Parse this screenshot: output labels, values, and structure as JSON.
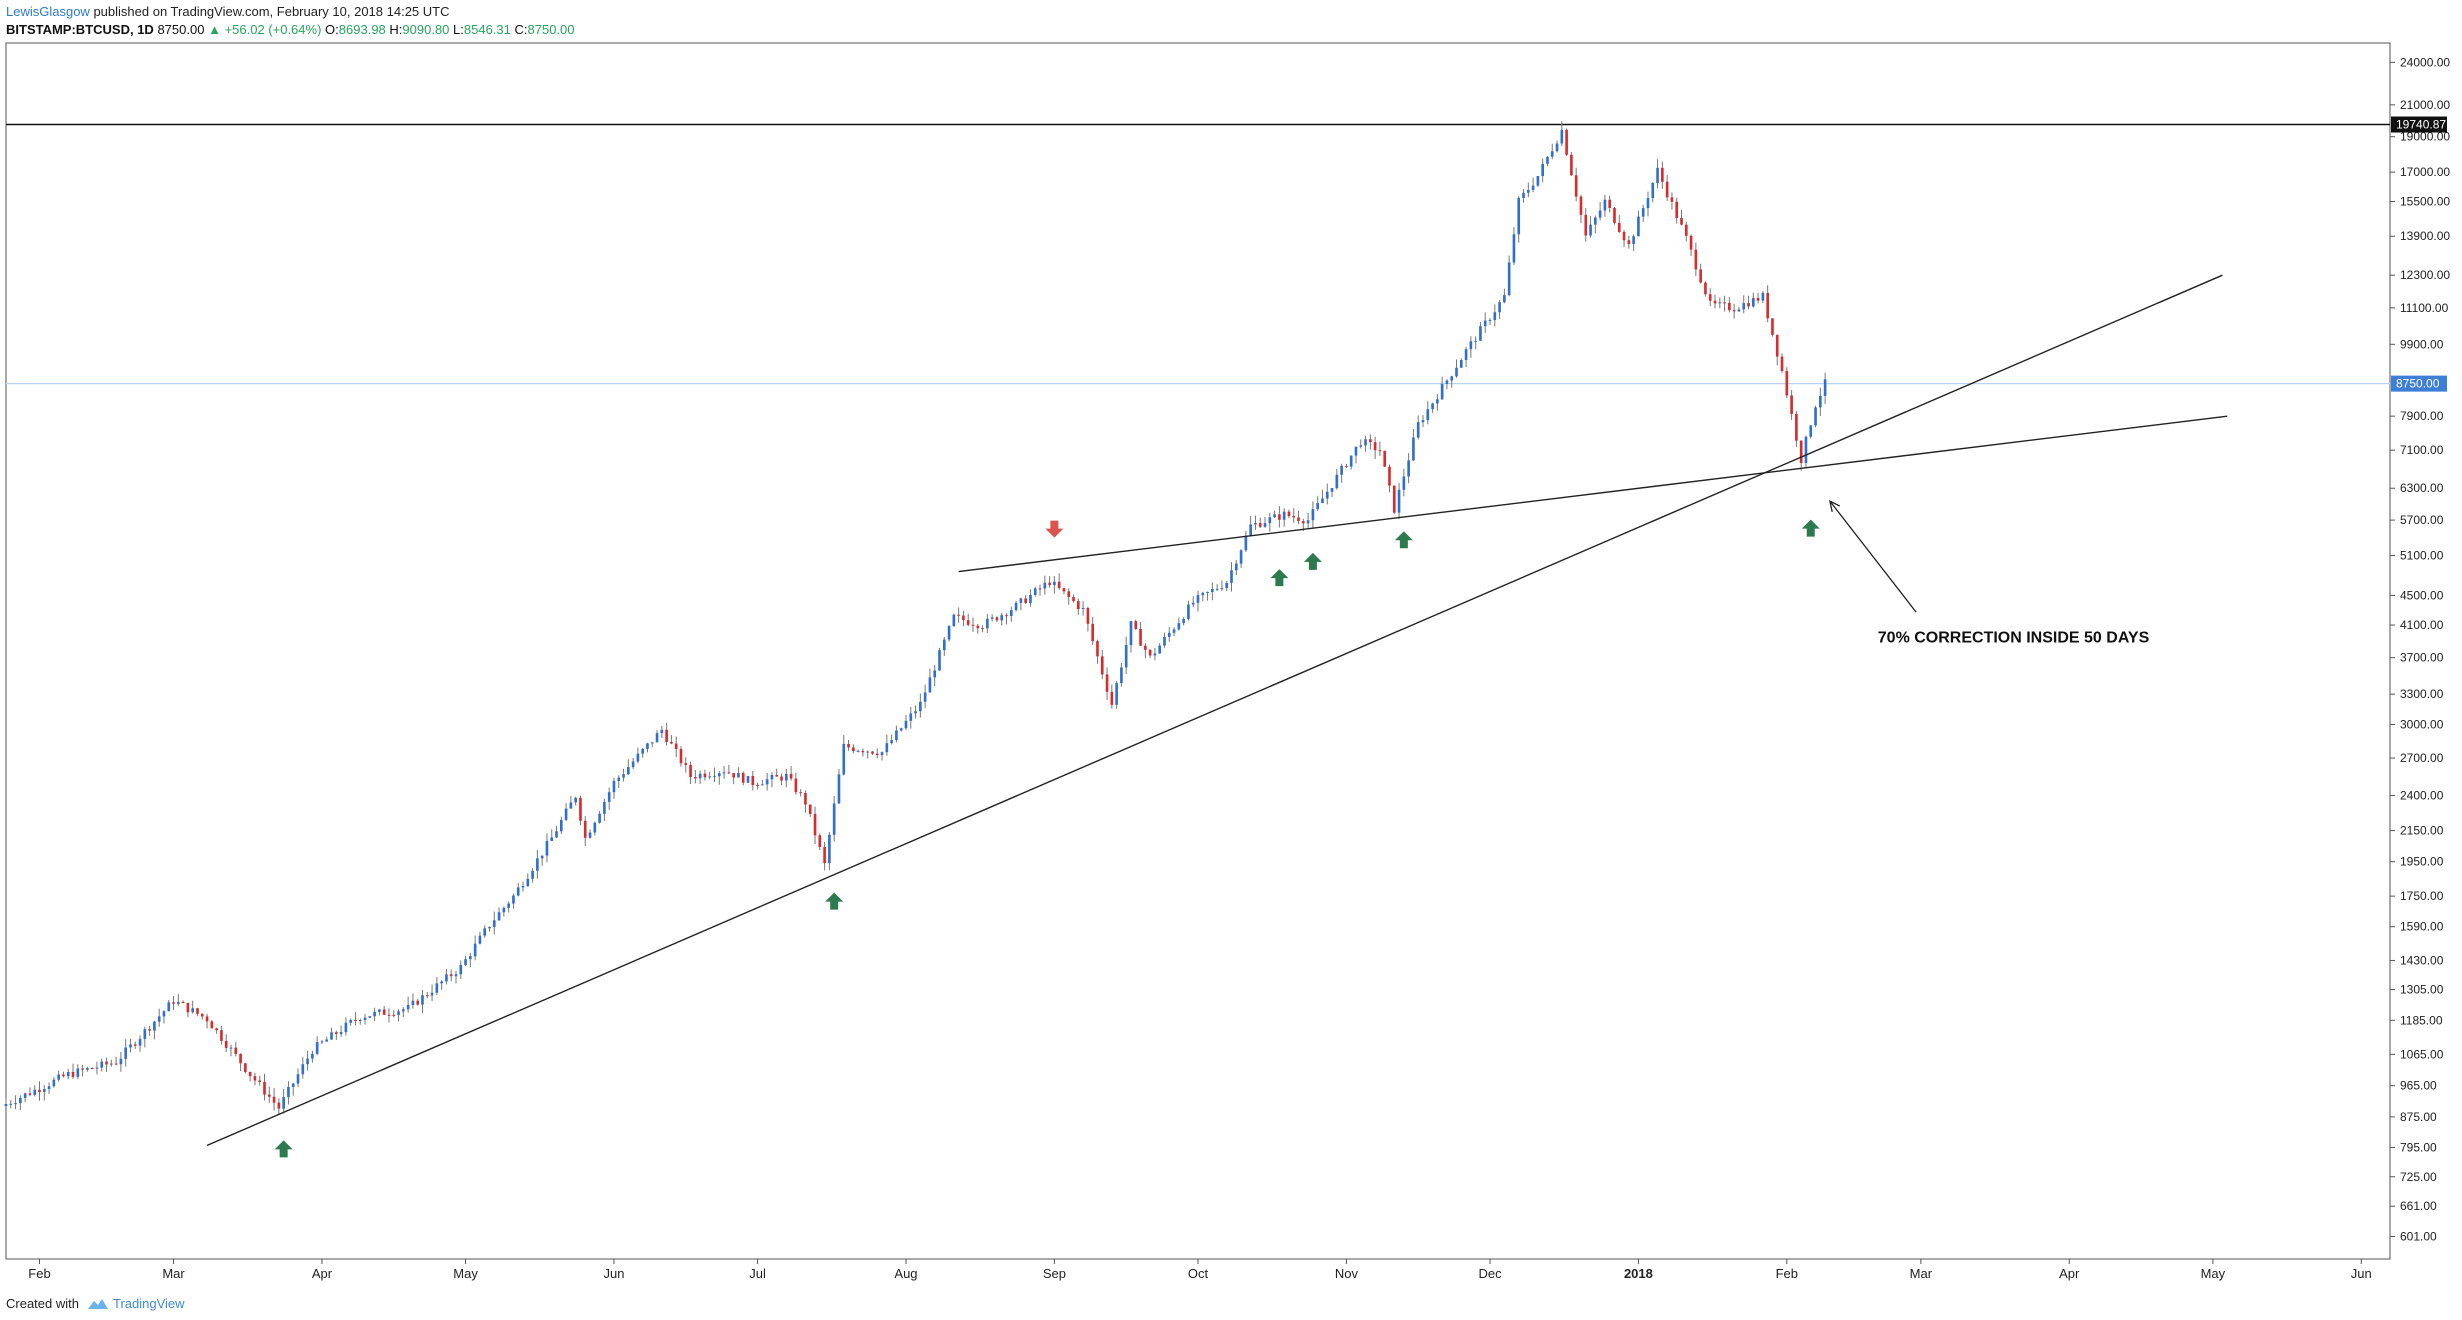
{
  "header": {
    "author": "LewisGlasgow",
    "published": "published on TradingView.com, February 10, 2018 14:25 UTC",
    "symbol": "BITSTAMP:BTCUSD, 1D",
    "last": "8750.00",
    "change": "+56.02 (+0.64%)",
    "o_label": "O:",
    "o_value": "8693.98",
    "h_label": "H:",
    "h_value": "9090.80",
    "l_label": "L:",
    "l_value": "8546.31",
    "c_label": "C:",
    "c_value": "8750.00"
  },
  "footer": {
    "created_with": "Created with",
    "brand": "TradingView"
  },
  "colors": {
    "up": "#2f6fd1",
    "down": "#d92b2b",
    "arrow_up": "#2d7a4e",
    "arrow_down": "#d9534f",
    "price_line": "#b9d4f2",
    "badge": "#3d7fd6"
  },
  "chart_data": {
    "type": "candlestick",
    "scale": "log",
    "ylim": [
      560,
      25500
    ],
    "xlim": [
      "2017-01-25",
      "2018-06-07"
    ],
    "x_ticks": [
      {
        "label": "Feb",
        "date": "2017-02-01"
      },
      {
        "label": "Mar",
        "date": "2017-03-01"
      },
      {
        "label": "Apr",
        "date": "2017-04-01"
      },
      {
        "label": "May",
        "date": "2017-05-01"
      },
      {
        "label": "Jun",
        "date": "2017-06-01"
      },
      {
        "label": "Jul",
        "date": "2017-07-01"
      },
      {
        "label": "Aug",
        "date": "2017-08-01"
      },
      {
        "label": "Sep",
        "date": "2017-09-01"
      },
      {
        "label": "Oct",
        "date": "2017-10-01"
      },
      {
        "label": "Nov",
        "date": "2017-11-01"
      },
      {
        "label": "Dec",
        "date": "2017-12-01"
      },
      {
        "label": "2018",
        "date": "2018-01-01",
        "bold": true
      },
      {
        "label": "Feb",
        "date": "2018-02-01"
      },
      {
        "label": "Mar",
        "date": "2018-03-01"
      },
      {
        "label": "Apr",
        "date": "2018-04-01"
      },
      {
        "label": "May",
        "date": "2018-05-01"
      },
      {
        "label": "Jun",
        "date": "2018-06-01"
      }
    ],
    "y_ticks": [
      {
        "label": "24000.00",
        "v": 24000
      },
      {
        "label": "21000.00",
        "v": 21000
      },
      {
        "label": "19000.00",
        "v": 19000
      },
      {
        "label": "17000.00",
        "v": 17000
      },
      {
        "label": "15500.00",
        "v": 15500
      },
      {
        "label": "13900.00",
        "v": 13900
      },
      {
        "label": "12300.00",
        "v": 12300
      },
      {
        "label": "11100.00",
        "v": 11100
      },
      {
        "label": "9900.00",
        "v": 9900
      },
      {
        "label": "7900.00",
        "v": 7900
      },
      {
        "label": "7100.00",
        "v": 7100
      },
      {
        "label": "6300.00",
        "v": 6300
      },
      {
        "label": "5700.00",
        "v": 5700
      },
      {
        "label": "5100.00",
        "v": 5100
      },
      {
        "label": "4500.00",
        "v": 4500
      },
      {
        "label": "4100.00",
        "v": 4100
      },
      {
        "label": "3700.00",
        "v": 3700
      },
      {
        "label": "3300.00",
        "v": 3300
      },
      {
        "label": "3000.00",
        "v": 3000
      },
      {
        "label": "2700.00",
        "v": 2700
      },
      {
        "label": "2400.00",
        "v": 2400
      },
      {
        "label": "2150.00",
        "v": 2150
      },
      {
        "label": "1950.00",
        "v": 1950
      },
      {
        "label": "1750.00",
        "v": 1750
      },
      {
        "label": "1590.00",
        "v": 1590
      },
      {
        "label": "1430.00",
        "v": 1430
      },
      {
        "label": "1305.00",
        "v": 1305
      },
      {
        "label": "1185.00",
        "v": 1185
      },
      {
        "label": "1065.00",
        "v": 1065
      },
      {
        "label": "965.00",
        "v": 965
      },
      {
        "label": "875.00",
        "v": 875
      },
      {
        "label": "795.00",
        "v": 795
      },
      {
        "label": "725.00",
        "v": 725
      },
      {
        "label": "661.00",
        "v": 661
      },
      {
        "label": "601.00",
        "v": 601
      }
    ],
    "price_badges": [
      {
        "label": "19740.87",
        "v": 19740.87,
        "kind": "dark"
      },
      {
        "label": "8750.00",
        "v": 8750,
        "kind": "blue"
      }
    ],
    "horizontal_lines": [
      {
        "v": 19740.87,
        "color": "#111111"
      },
      {
        "v": 8750,
        "color": "#b9d4f2"
      }
    ],
    "trendlines": [
      {
        "from": {
          "date": "2017-03-08",
          "v": 800
        },
        "to": {
          "date": "2018-05-03",
          "v": 12300
        }
      },
      {
        "from": {
          "date": "2017-08-12",
          "v": 4850
        },
        "to": {
          "date": "2018-05-04",
          "v": 7900
        }
      }
    ],
    "markers": [
      {
        "date": "2017-03-24",
        "v": 790,
        "type": "up"
      },
      {
        "date": "2017-07-17",
        "v": 1720,
        "type": "up"
      },
      {
        "date": "2017-09-01",
        "v": 5550,
        "type": "down"
      },
      {
        "date": "2017-10-18",
        "v": 4750,
        "type": "up"
      },
      {
        "date": "2017-10-25",
        "v": 5000,
        "type": "up"
      },
      {
        "date": "2017-11-13",
        "v": 5350,
        "type": "up"
      },
      {
        "date": "2018-02-06",
        "v": 5550,
        "type": "up"
      }
    ],
    "annotation": {
      "text": "70% CORRECTION INSIDE 50 DAYS",
      "date": "2018-02-20",
      "v": 3880,
      "arrow": {
        "from": {
          "date": "2018-02-28",
          "v": 4270
        },
        "to": {
          "date": "2018-02-10",
          "v": 6050
        }
      }
    },
    "anchors": [
      [
        "2017-01-25",
        905
      ],
      [
        "2017-02-08",
        1000
      ],
      [
        "2017-02-18",
        1040
      ],
      [
        "2017-03-02",
        1260
      ],
      [
        "2017-03-09",
        1190
      ],
      [
        "2017-03-18",
        1000
      ],
      [
        "2017-03-24",
        900
      ],
      [
        "2017-03-31",
        1080
      ],
      [
        "2017-04-10",
        1200
      ],
      [
        "2017-04-20",
        1230
      ],
      [
        "2017-05-01",
        1400
      ],
      [
        "2017-05-07",
        1600
      ],
      [
        "2017-05-12",
        1750
      ],
      [
        "2017-05-20",
        2100
      ],
      [
        "2017-05-25",
        2400
      ],
      [
        "2017-05-27",
        2100
      ],
      [
        "2017-06-02",
        2500
      ],
      [
        "2017-06-12",
        2950
      ],
      [
        "2017-06-18",
        2550
      ],
      [
        "2017-06-25",
        2600
      ],
      [
        "2017-07-01",
        2500
      ],
      [
        "2017-07-08",
        2550
      ],
      [
        "2017-07-12",
        2350
      ],
      [
        "2017-07-16",
        1930
      ],
      [
        "2017-07-20",
        2800
      ],
      [
        "2017-07-28",
        2750
      ],
      [
        "2017-08-05",
        3200
      ],
      [
        "2017-08-12",
        4200
      ],
      [
        "2017-08-18",
        4100
      ],
      [
        "2017-08-25",
        4350
      ],
      [
        "2017-09-01",
        4700
      ],
      [
        "2017-09-08",
        4300
      ],
      [
        "2017-09-14",
        3200
      ],
      [
        "2017-09-18",
        4100
      ],
      [
        "2017-09-22",
        3700
      ],
      [
        "2017-10-01",
        4400
      ],
      [
        "2017-10-08",
        4700
      ],
      [
        "2017-10-13",
        5600
      ],
      [
        "2017-10-20",
        5800
      ],
      [
        "2017-10-25",
        5700
      ],
      [
        "2017-11-05",
        7300
      ],
      [
        "2017-11-09",
        7100
      ],
      [
        "2017-11-12",
        5900
      ],
      [
        "2017-11-17",
        7700
      ],
      [
        "2017-11-27",
        9700
      ],
      [
        "2017-12-05",
        11500
      ],
      [
        "2017-12-08",
        15500
      ],
      [
        "2017-12-12",
        16800
      ],
      [
        "2017-12-17",
        19400
      ],
      [
        "2017-12-22",
        13900
      ],
      [
        "2017-12-26",
        15500
      ],
      [
        "2017-12-31",
        13500
      ],
      [
        "2018-01-06",
        17100
      ],
      [
        "2018-01-12",
        13800
      ],
      [
        "2018-01-17",
        11200
      ],
      [
        "2018-01-22",
        11100
      ],
      [
        "2018-01-28",
        11500
      ],
      [
        "2018-02-01",
        9100
      ],
      [
        "2018-02-05",
        6900
      ],
      [
        "2018-02-08",
        8200
      ],
      [
        "2018-02-10",
        8750
      ]
    ]
  }
}
